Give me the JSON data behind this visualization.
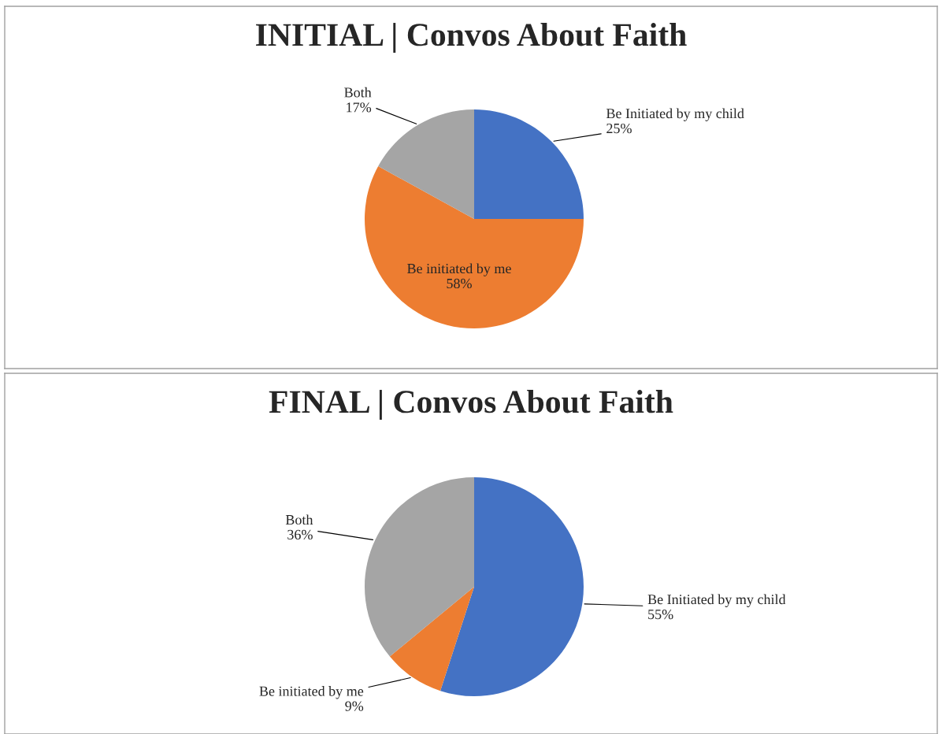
{
  "chart_data": [
    {
      "type": "pie",
      "title": "INITIAL | Convos About Faith",
      "categories": [
        "Be Initiated by my child",
        "Be initiated by me",
        "Both"
      ],
      "values": [
        25,
        58,
        17
      ],
      "value_labels": [
        "25%",
        "58%",
        "17%"
      ],
      "colors": [
        "#4472c4",
        "#ed7d31",
        "#a5a5a5"
      ]
    },
    {
      "type": "pie",
      "title": "FINAL | Convos About Faith",
      "categories": [
        "Be Initiated by my child",
        "Be initiated by me",
        "Both"
      ],
      "values": [
        55,
        9,
        36
      ],
      "value_labels": [
        "55%",
        "9%",
        "36%"
      ],
      "colors": [
        "#4472c4",
        "#ed7d31",
        "#a5a5a5"
      ]
    }
  ]
}
